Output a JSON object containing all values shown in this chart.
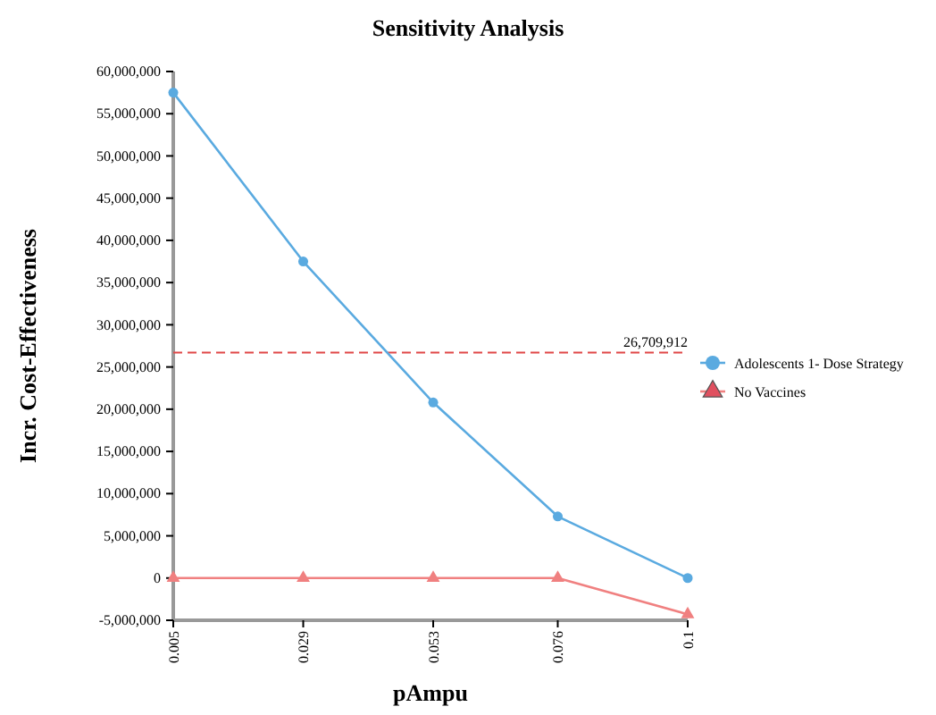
{
  "chart_data": {
    "type": "line",
    "title": "Sensitivity Analysis",
    "xlabel": "pAmpu",
    "ylabel": "Incr. Cost-Effectiveness",
    "x": [
      0.005,
      0.029,
      0.053,
      0.076,
      0.1
    ],
    "xlim": [
      0.005,
      0.1
    ],
    "xticks": [
      0.005,
      0.029,
      0.053,
      0.076,
      0.1
    ],
    "ylim": [
      -5000000,
      60000000
    ],
    "yticks": [
      {
        "value": -5000000,
        "label": "-5,000,000"
      },
      0,
      {
        "value": 5000000,
        "label": "5,000,000"
      },
      {
        "value": 10000000,
        "label": "10,000,000"
      },
      {
        "value": 15000000,
        "label": "15,000,000"
      },
      {
        "value": 20000000,
        "label": "20,000,000"
      },
      {
        "value": 25000000,
        "label": "25,000,000"
      },
      {
        "value": 30000000,
        "label": "30,000,000"
      },
      {
        "value": 35000000,
        "label": "35,000,000"
      },
      {
        "value": 40000000,
        "label": "40,000,000"
      },
      {
        "value": 45000000,
        "label": "45,000,000"
      },
      {
        "value": 50000000,
        "label": "50,000,000"
      },
      {
        "value": 55000000,
        "label": "55,000,000"
      },
      {
        "value": 60000000,
        "label": "60,000,000"
      }
    ],
    "series": [
      {
        "name": "Adolescents 1- Dose Strategy",
        "color": "#5aaae0",
        "marker": "circle",
        "values": [
          57500000,
          37500000,
          20800000,
          7300000,
          0
        ]
      },
      {
        "name": "No Vaccines",
        "color": "#f08080",
        "marker": "triangle",
        "values": [
          0,
          0,
          0,
          0,
          -4300000
        ]
      }
    ],
    "ref_lines": [
      {
        "axis": "y",
        "value": 26709912,
        "label": "26,709,912",
        "color": "#e04848",
        "line_style": "dashed"
      }
    ],
    "grid": false,
    "legend": "right"
  }
}
